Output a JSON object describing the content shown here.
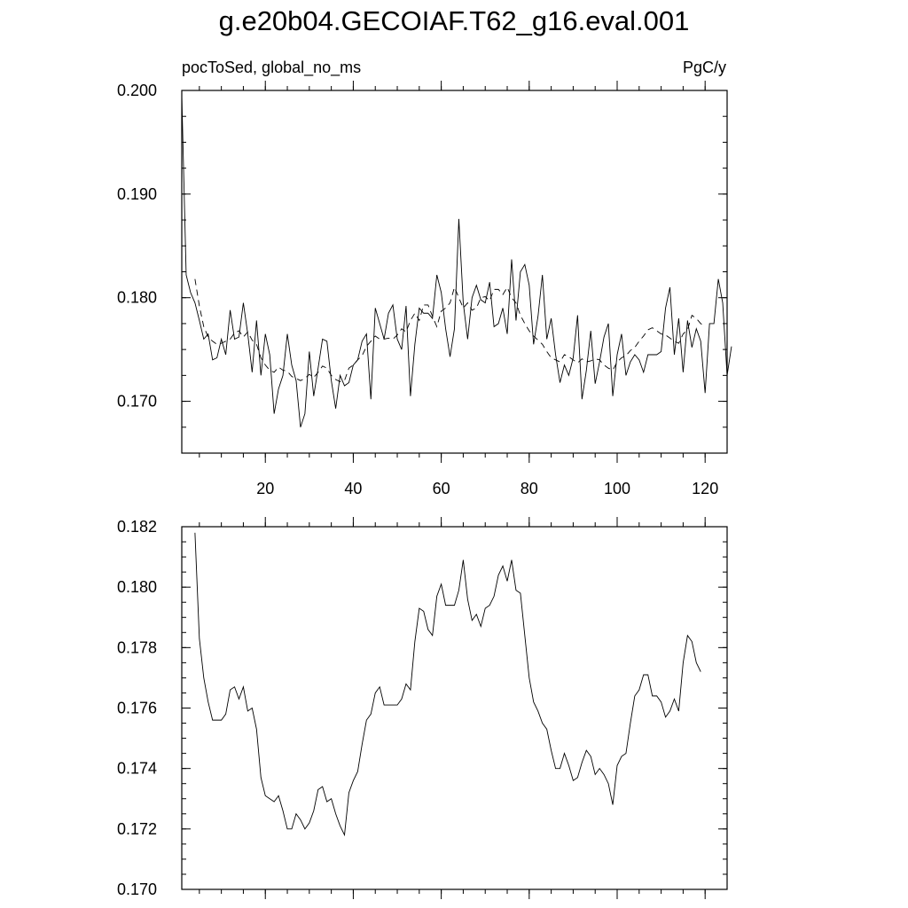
{
  "title": "g.e20b04.GECOIAF.T62_g16.eval.001",
  "subtitle_left": "pocToSed, global_no_ms",
  "subtitle_right": "PgC/y",
  "chart_data": [
    {
      "type": "line",
      "panel": "top",
      "xlim": [
        1,
        125
      ],
      "ylim": [
        0.165,
        0.2
      ],
      "x_ticks": [
        20,
        40,
        60,
        80,
        100,
        120
      ],
      "x_tick_labels": [
        "20",
        "40",
        "60",
        "80",
        "100",
        "120"
      ],
      "y_ticks": [
        0.17,
        0.18,
        0.19,
        0.2
      ],
      "y_tick_labels": [
        "0.170",
        "0.180",
        "0.190",
        "0.200"
      ],
      "grid": false,
      "series": [
        {
          "style": "solid",
          "x_start": 1,
          "values": [
            0.1995,
            0.1822,
            0.1805,
            0.1795,
            0.1778,
            0.176,
            0.1765,
            0.174,
            0.1742,
            0.176,
            0.1745,
            0.1788,
            0.176,
            0.1762,
            0.1795,
            0.1765,
            0.1728,
            0.1778,
            0.1725,
            0.1765,
            0.1745,
            0.1688,
            0.1712,
            0.1725,
            0.1765,
            0.1735,
            0.172,
            0.1675,
            0.1688,
            0.1748,
            0.1705,
            0.1732,
            0.176,
            0.1758,
            0.172,
            0.1693,
            0.1725,
            0.1715,
            0.1718,
            0.1735,
            0.174,
            0.1758,
            0.1765,
            0.1702,
            0.179,
            0.1775,
            0.176,
            0.1785,
            0.1793,
            0.176,
            0.175,
            0.1792,
            0.1705,
            0.1755,
            0.179,
            0.1785,
            0.1785,
            0.178,
            0.1822,
            0.1805,
            0.177,
            0.1743,
            0.177,
            0.1876,
            0.1795,
            0.176,
            0.18,
            0.1812,
            0.1798,
            0.1795,
            0.1815,
            0.1772,
            0.1775,
            0.179,
            0.1765,
            0.1837,
            0.1778,
            0.1825,
            0.1832,
            0.1812,
            0.1755,
            0.1782,
            0.1822,
            0.176,
            0.178,
            0.1745,
            0.1718,
            0.1735,
            0.1725,
            0.1742,
            0.1783,
            0.1702,
            0.173,
            0.1768,
            0.1717,
            0.1738,
            0.1762,
            0.1775,
            0.1705,
            0.1745,
            0.1765,
            0.1725,
            0.1738,
            0.1745,
            0.174,
            0.1728,
            0.1745,
            0.1745,
            0.1745,
            0.1748,
            0.179,
            0.181,
            0.1745,
            0.178,
            0.1728,
            0.1778,
            0.1752,
            0.177,
            0.1758,
            0.1708,
            0.1775,
            0.1775,
            0.1818,
            0.1795,
            0.1725,
            0.1753
          ]
        },
        {
          "style": "dashed",
          "x_start": 4,
          "values": [
            0.1818,
            0.1792,
            0.1772,
            0.1762,
            0.1758,
            0.1755,
            0.1756,
            0.1758,
            0.176,
            0.1766,
            0.1768,
            0.1762,
            0.1767,
            0.1759,
            0.1755,
            0.1742,
            0.1735,
            0.173,
            0.1728,
            0.1733,
            0.173,
            0.1729,
            0.1724,
            0.1722,
            0.172,
            0.1722,
            0.1726,
            0.1723,
            0.1728,
            0.1734,
            0.1732,
            0.1725,
            0.1721,
            0.1719,
            0.172,
            0.1732,
            0.1735,
            0.174,
            0.1744,
            0.1753,
            0.1758,
            0.1763,
            0.176,
            0.176,
            0.1761,
            0.176,
            0.1764,
            0.177,
            0.1767,
            0.1778,
            0.1785,
            0.1778,
            0.1793,
            0.1793,
            0.1782,
            0.1772,
            0.1787,
            0.179,
            0.1795,
            0.181,
            0.18,
            0.179,
            0.1795,
            0.1788,
            0.179,
            0.18,
            0.1801,
            0.1797,
            0.1808,
            0.1808,
            0.1803,
            0.181,
            0.18,
            0.1795,
            0.1783,
            0.1775,
            0.1768,
            0.1763,
            0.1759,
            0.1755,
            0.1748,
            0.1742,
            0.174,
            0.1738,
            0.1745,
            0.1743,
            0.174,
            0.1737,
            0.1741,
            0.1738,
            0.1739,
            0.1741,
            0.174,
            0.1735,
            0.1732,
            0.173,
            0.1738,
            0.1742,
            0.1744,
            0.1749,
            0.1752,
            0.1758,
            0.1763,
            0.1769,
            0.1771,
            0.1768,
            0.1765,
            0.1764,
            0.1761,
            0.1758,
            0.1756,
            0.1765,
            0.1769,
            0.1783,
            0.178,
            0.1775,
            0.1772
          ]
        }
      ]
    },
    {
      "type": "line",
      "panel": "bottom",
      "xlim": [
        1,
        125
      ],
      "ylim": [
        0.17,
        0.182
      ],
      "x_ticks": [
        20,
        40,
        60,
        80,
        100,
        120
      ],
      "x_tick_labels": [
        "",
        "",
        "",
        "",
        "",
        ""
      ],
      "y_ticks": [
        0.17,
        0.172,
        0.174,
        0.176,
        0.178,
        0.18,
        0.182
      ],
      "y_tick_labels": [
        "0.170",
        "0.172",
        "0.174",
        "0.176",
        "0.178",
        "0.180",
        "0.182"
      ],
      "grid": false,
      "series": [
        {
          "style": "solid",
          "x_start": 4,
          "values": [
            0.1818,
            0.1783,
            0.177,
            0.1762,
            0.1756,
            0.1756,
            0.1756,
            0.1758,
            0.1766,
            0.1767,
            0.1763,
            0.1767,
            0.1759,
            0.176,
            0.1753,
            0.1737,
            0.1731,
            0.173,
            0.1729,
            0.1731,
            0.1726,
            0.172,
            0.172,
            0.1725,
            0.1723,
            0.172,
            0.1722,
            0.1726,
            0.1733,
            0.1734,
            0.1729,
            0.173,
            0.1725,
            0.1721,
            0.1718,
            0.1732,
            0.1736,
            0.1739,
            0.1748,
            0.1756,
            0.1758,
            0.1765,
            0.1767,
            0.1761,
            0.1761,
            0.1761,
            0.1761,
            0.1763,
            0.1768,
            0.1766,
            0.1782,
            0.1793,
            0.1792,
            0.1786,
            0.1784,
            0.1797,
            0.1801,
            0.1794,
            0.1794,
            0.1794,
            0.1799,
            0.1809,
            0.1796,
            0.1789,
            0.1791,
            0.1787,
            0.1793,
            0.1794,
            0.1797,
            0.1804,
            0.1807,
            0.1802,
            0.1809,
            0.1799,
            0.1798,
            0.1784,
            0.177,
            0.1762,
            0.1759,
            0.1755,
            0.1753,
            0.1746,
            0.174,
            0.174,
            0.1745,
            0.1741,
            0.1736,
            0.1737,
            0.1742,
            0.1746,
            0.1744,
            0.1738,
            0.174,
            0.1738,
            0.1735,
            0.1728,
            0.1741,
            0.1744,
            0.1745,
            0.1755,
            0.1764,
            0.1766,
            0.1771,
            0.1771,
            0.1764,
            0.1764,
            0.1762,
            0.1757,
            0.1759,
            0.1763,
            0.1759,
            0.1775,
            0.1784,
            0.1782,
            0.1775,
            0.1772
          ]
        }
      ]
    }
  ]
}
